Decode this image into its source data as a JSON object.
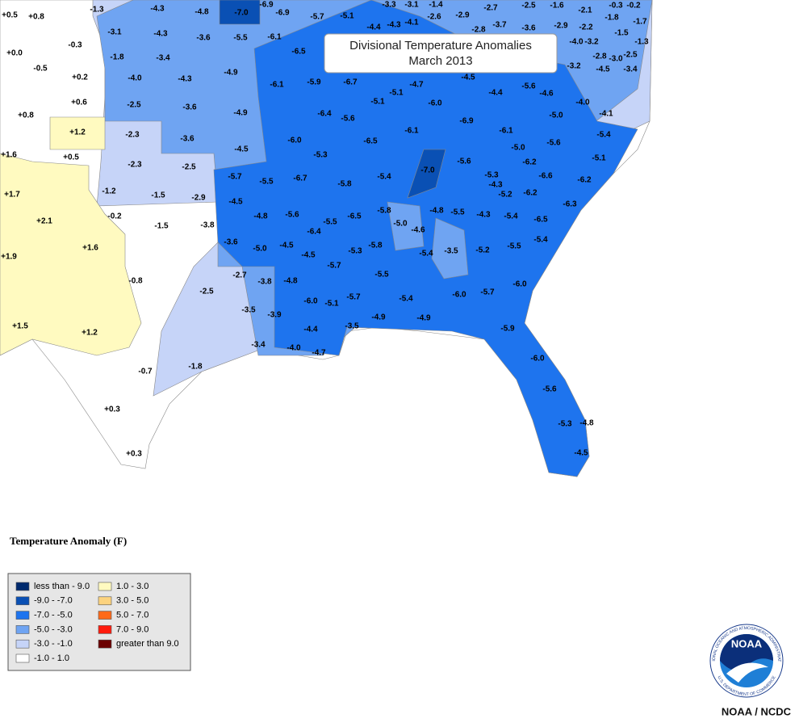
{
  "map": {
    "title": "Divisional Temperature Anomalies",
    "subtitle": "March 2013",
    "labels": [
      "+0.5",
      "+0.8",
      "-1.3",
      "-4.3",
      "-4.8",
      "-7.0",
      "-6.9",
      "-6.9",
      "-5.7",
      "-5.1",
      "-3.3",
      "-3.1",
      "-1.4",
      "-2.6",
      "-2.9",
      "-2.7",
      "-2.5",
      "-1.6",
      "-2.1",
      "-0.3",
      "-0.2",
      "-1.8",
      "-1.7",
      "-4.4",
      "-4.3",
      "-4.1",
      "-2.8",
      "-3.7",
      "-3.6",
      "-2.9",
      "-2.2",
      "-1.5",
      "-4.0",
      "-3.2",
      "-1.3",
      "-2.8",
      "-3.0",
      "-2.5",
      "-4.5",
      "-3.4",
      "-3.2",
      "-0.3",
      "+0.0",
      "-0.5",
      "-3.1",
      "-4.3",
      "-3.6",
      "-5.5",
      "-6.1",
      "-6.5",
      "-1.8",
      "-3.4",
      "+0.2",
      "-4.0",
      "-4.3",
      "-4.9",
      "-6.1",
      "-5.9",
      "-6.7",
      "-4.7",
      "-4.5",
      "-5.6",
      "-4.4",
      "-4.6",
      "-4.0",
      "+0.6",
      "+0.8",
      "-2.5",
      "-3.6",
      "-4.9",
      "-6.4",
      "-5.1",
      "-5.1",
      "-6.0",
      "-5.0",
      "-4.1",
      "-5.6",
      "-6.9",
      "+1.2",
      "-2.3",
      "-3.6",
      "-6.5",
      "-6.1",
      "-6.1",
      "-5.4",
      "-5.6",
      "-6.0",
      "-4.5",
      "-5.0",
      "+1.6",
      "+0.5",
      "-5.3",
      "-7.0",
      "-5.6",
      "-6.2",
      "-5.1",
      "-2.3",
      "-2.5",
      "-5.7",
      "-5.5",
      "-6.7",
      "-5.8",
      "-5.4",
      "-5.3",
      "-6.6",
      "-6.2",
      "+1.7",
      "-1.2",
      "-1.5",
      "-2.9",
      "-4.3",
      "-5.2",
      "-6.2",
      "-4.5",
      "-0.2",
      "+2.1",
      "-4.8",
      "-5.6",
      "-5.5",
      "-6.5",
      "-5.8",
      "-5.0",
      "-4.8",
      "-5.5",
      "-4.3",
      "-5.4",
      "-6.5",
      "-6.3",
      "-1.5",
      "-3.8",
      "-6.4",
      "-4.6",
      "+1.6",
      "-3.6",
      "-5.0",
      "-4.5",
      "-4.5",
      "-5.3",
      "-5.8",
      "-5.4",
      "-3.5",
      "-5.2",
      "-5.5",
      "-5.4",
      "+1.9",
      "-5.7",
      "-0.8",
      "-2.7",
      "-3.8",
      "-4.8",
      "-5.5",
      "-6.0",
      "-2.5",
      "-6.0",
      "-5.1",
      "-5.7",
      "-5.4",
      "-6.0",
      "-5.7",
      "-3.5",
      "-3.9",
      "-4.9",
      "-4.9",
      "+1.5",
      "+1.2",
      "-4.4",
      "-3.5",
      "-5.9",
      "-3.4",
      "-4.0",
      "-4.7",
      "-6.0",
      "-1.8",
      "-0.7",
      "-5.6",
      "+0.3",
      "-5.3",
      "-4.8",
      "+0.3",
      "-4.5"
    ],
    "legend": {
      "title": "Temperature Anomaly (F)",
      "items": [
        {
          "label": "less than - 9.0",
          "color": "#002a6e"
        },
        {
          "label": "-9.0 - -7.0",
          "color": "#0a50b4"
        },
        {
          "label": "-7.0 - -5.0",
          "color": "#1e74ee"
        },
        {
          "label": "-5.0 - -3.0",
          "color": "#6fa4f2"
        },
        {
          "label": "-3.0 - -1.0",
          "color": "#c6d4f8"
        },
        {
          "label": "-1.0 - 1.0",
          "color": "#ffffff"
        },
        {
          "label": "1.0 - 3.0",
          "color": "#fffac0"
        },
        {
          "label": "3.0 - 5.0",
          "color": "#fcd37f"
        },
        {
          "label": "5.0 - 7.0",
          "color": "#ff6a1a"
        },
        {
          "label": "7.0 - 9.0",
          "color": "#ff1b0d"
        },
        {
          "label": "greater than 9.0",
          "color": "#6b0000"
        }
      ]
    },
    "logo": {
      "text": "NOAA",
      "ring_top": "NATIONAL OCEANIC AND ATMOSPHERIC ADMINISTRATION",
      "ring_bottom": "U.S. DEPARTMENT OF COMMERCE"
    },
    "credit": "NOAA / NCDC"
  }
}
